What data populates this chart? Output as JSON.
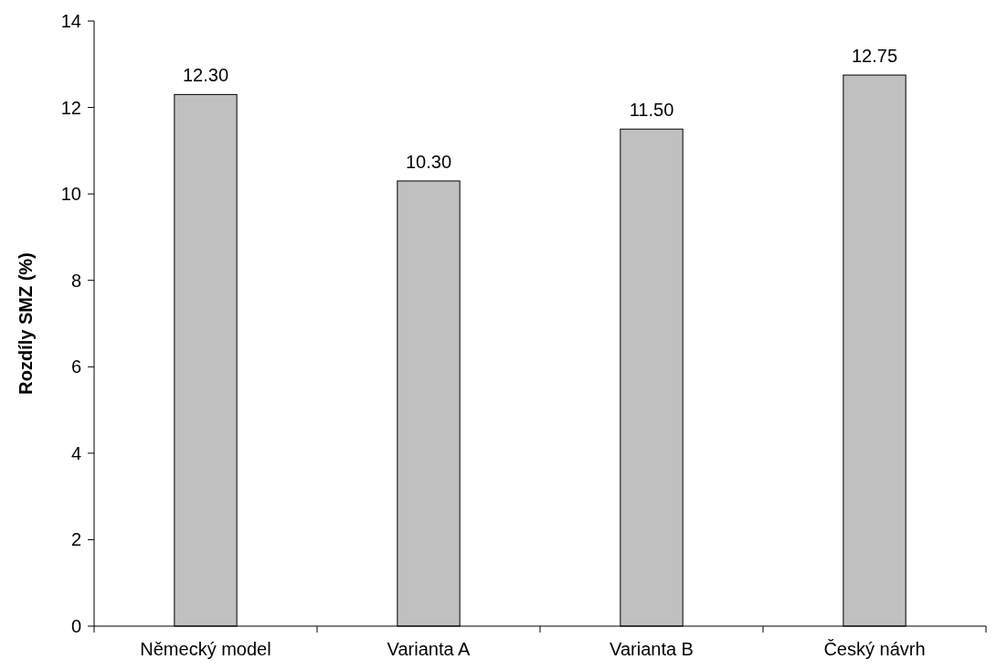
{
  "chart_data": {
    "type": "bar",
    "ylabel": "Rozdíly SMZ (%)",
    "categories": [
      "Německý model",
      "Varianta A",
      "Varianta B",
      "Český návrh"
    ],
    "values": [
      12.3,
      10.3,
      11.5,
      12.75
    ],
    "value_labels": [
      "12.30",
      "10.30",
      "11.50",
      "12.75"
    ],
    "color": "#c0c0c0",
    "ylim": [
      0,
      14
    ],
    "yticks": [
      0,
      2,
      4,
      6,
      8,
      10,
      12,
      14
    ]
  }
}
